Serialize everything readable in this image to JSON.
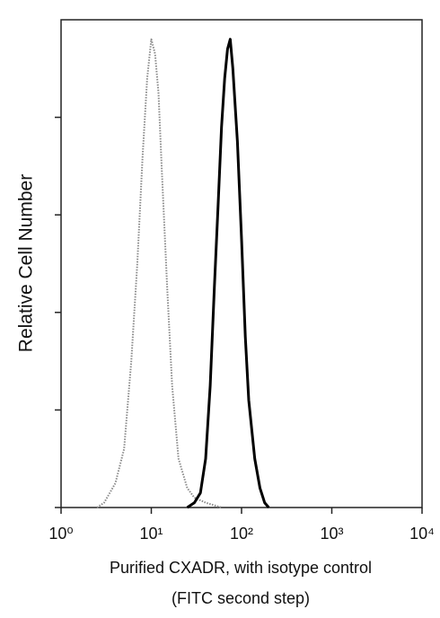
{
  "chart_data": {
    "type": "line",
    "ylabel": "Relative Cell Number",
    "xlabel": "Purified CXADR, with isotype control",
    "xlabel_note": "(FITC second step)",
    "xscale": "log",
    "xlim": [
      1,
      10000
    ],
    "xticks": [
      {
        "value": 1,
        "label": "10⁰"
      },
      {
        "value": 10,
        "label": "10¹"
      },
      {
        "value": 100,
        "label": "10²"
      },
      {
        "value": 1000,
        "label": "10³"
      },
      {
        "value": 10000,
        "label": "10⁴"
      }
    ],
    "ylim": [
      0,
      100
    ],
    "yticks": [
      0,
      20,
      40,
      60,
      80
    ],
    "series": [
      {
        "color": "#8a8a8a",
        "linestyle": "dotted",
        "x": [
          2.5,
          3,
          4,
          5,
          6,
          7,
          8,
          9,
          10,
          11,
          12,
          13,
          15,
          17,
          20,
          25,
          30,
          40,
          60
        ],
        "values": [
          0,
          1,
          5,
          12,
          30,
          50,
          72,
          88,
          96,
          93,
          85,
          70,
          45,
          25,
          10,
          4,
          2,
          1,
          0
        ]
      },
      {
        "color": "#000000",
        "linestyle": "solid",
        "x": [
          25,
          30,
          35,
          40,
          45,
          50,
          55,
          60,
          65,
          70,
          75,
          80,
          90,
          100,
          110,
          120,
          140,
          160,
          180,
          200
        ],
        "values": [
          0,
          1,
          3,
          10,
          25,
          45,
          62,
          78,
          88,
          94,
          96,
          90,
          75,
          55,
          35,
          22,
          10,
          4,
          1,
          0
        ]
      }
    ]
  }
}
